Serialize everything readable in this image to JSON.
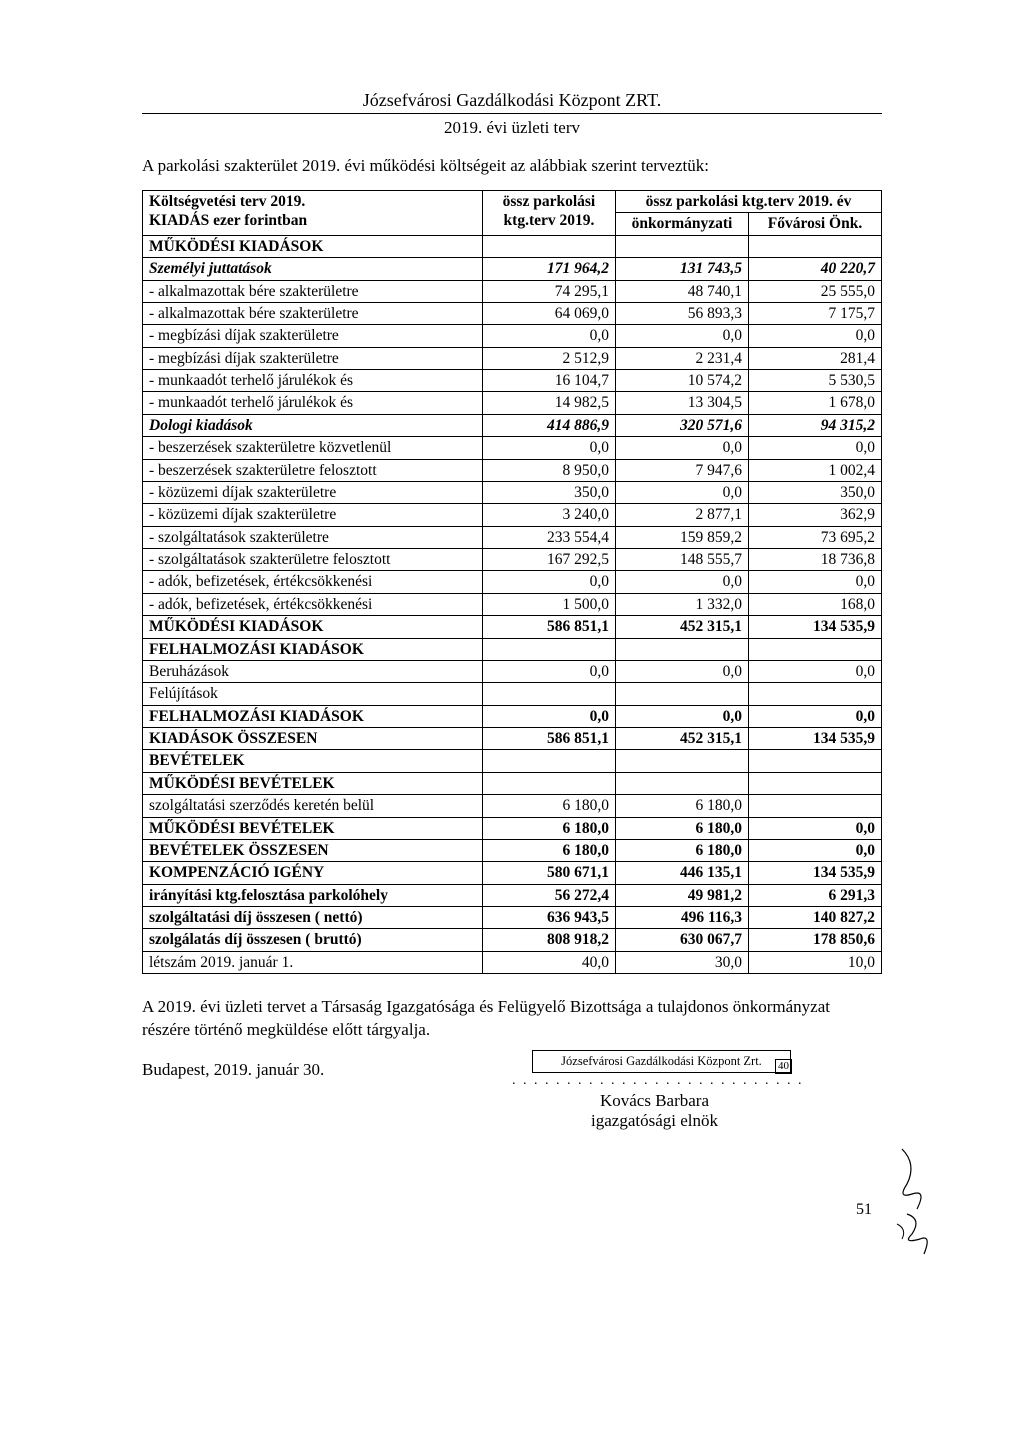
{
  "header": {
    "title": "Józsefvárosi Gazdálkodási Központ ZRT.",
    "subtitle": "2019. évi üzleti terv"
  },
  "intro": "A parkolási szakterület 2019. évi működési költségeit az alábbiak szerint terveztük:",
  "table": {
    "head": {
      "r1c1": "Költségvetési terv 2019.",
      "r1c2": "össz parkolási ktg.terv 2019.",
      "r1c3": "össz parkolási ktg.terv 2019. év",
      "r2c1": "KIADÁS ezer forintban",
      "r3c2": "önkormányzati",
      "r3c3": "Fővárosi Önk."
    },
    "rows": [
      {
        "label": "MŰKÖDÉSI KIADÁSOK",
        "c1": "",
        "c2": "",
        "c3": "",
        "style": "bold"
      },
      {
        "label": "Személyi juttatások",
        "c1": "171 964,2",
        "c2": "131 743,5",
        "c3": "40 220,7",
        "style": "ital"
      },
      {
        "label": "- alkalmazottak bére szakterületre",
        "c1": "74 295,1",
        "c2": "48 740,1",
        "c3": "25 555,0",
        "style": ""
      },
      {
        "label": "- alkalmazottak bére szakterületre",
        "c1": "64 069,0",
        "c2": "56 893,3",
        "c3": "7 175,7",
        "style": ""
      },
      {
        "label": "- megbízási díjak szakterületre",
        "c1": "0,0",
        "c2": "0,0",
        "c3": "0,0",
        "style": ""
      },
      {
        "label": "- megbízási díjak szakterületre",
        "c1": "2 512,9",
        "c2": "2 231,4",
        "c3": "281,4",
        "style": ""
      },
      {
        "label": "- munkaadót terhelő járulékok és",
        "c1": "16 104,7",
        "c2": "10 574,2",
        "c3": "5 530,5",
        "style": ""
      },
      {
        "label": "- munkaadót terhelő járulékok és",
        "c1": "14 982,5",
        "c2": "13 304,5",
        "c3": "1 678,0",
        "style": ""
      },
      {
        "label": "Dologi kiadások",
        "c1": "414 886,9",
        "c2": "320 571,6",
        "c3": "94 315,2",
        "style": "ital"
      },
      {
        "label": "- beszerzések szakterületre közvetlenül",
        "c1": "0,0",
        "c2": "0,0",
        "c3": "0,0",
        "style": ""
      },
      {
        "label": "- beszerzések szakterületre felosztott",
        "c1": "8 950,0",
        "c2": "7 947,6",
        "c3": "1 002,4",
        "style": ""
      },
      {
        "label": "- közüzemi díjak szakterületre",
        "c1": "350,0",
        "c2": "0,0",
        "c3": "350,0",
        "style": ""
      },
      {
        "label": "- közüzemi díjak szakterületre",
        "c1": "3 240,0",
        "c2": "2 877,1",
        "c3": "362,9",
        "style": ""
      },
      {
        "label": "- szolgáltatások szakterületre",
        "c1": "233 554,4",
        "c2": "159 859,2",
        "c3": "73 695,2",
        "style": ""
      },
      {
        "label": "- szolgáltatások szakterületre felosztott",
        "c1": "167 292,5",
        "c2": "148 555,7",
        "c3": "18 736,8",
        "style": ""
      },
      {
        "label": "- adók, befizetések, értékcsökkenési",
        "c1": "0,0",
        "c2": "0,0",
        "c3": "0,0",
        "style": ""
      },
      {
        "label": "- adók, befizetések, értékcsökkenési",
        "c1": "1 500,0",
        "c2": "1 332,0",
        "c3": "168,0",
        "style": ""
      },
      {
        "label": "MŰKÖDÉSI KIADÁSOK",
        "c1": "586 851,1",
        "c2": "452 315,1",
        "c3": "134 535,9",
        "style": "bold"
      },
      {
        "label": "FELHALMOZÁSI KIADÁSOK",
        "c1": "",
        "c2": "",
        "c3": "",
        "style": "bold"
      },
      {
        "label": "Beruházások",
        "c1": "0,0",
        "c2": "0,0",
        "c3": "0,0",
        "style": ""
      },
      {
        "label": "Felújítások",
        "c1": "",
        "c2": "",
        "c3": "",
        "style": ""
      },
      {
        "label": "FELHALMOZÁSI KIADÁSOK",
        "c1": "0,0",
        "c2": "0,0",
        "c3": "0,0",
        "style": "bold"
      },
      {
        "label": "KIADÁSOK  ÖSSZESEN",
        "c1": "586 851,1",
        "c2": "452 315,1",
        "c3": "134 535,9",
        "style": "bold"
      },
      {
        "label": "BEVÉTELEK",
        "c1": "",
        "c2": "",
        "c3": "",
        "style": "bold"
      },
      {
        "label": "MŰKÖDÉSI BEVÉTELEK",
        "c1": "",
        "c2": "",
        "c3": "",
        "style": "bold"
      },
      {
        "label": "szolgáltatási szerződés keretén belül",
        "c1": "6 180,0",
        "c2": "6 180,0",
        "c3": "",
        "style": ""
      },
      {
        "label": "MŰKÖDÉSI BEVÉTELEK",
        "c1": "6 180,0",
        "c2": "6 180,0",
        "c3": "0,0",
        "style": "bold"
      },
      {
        "label": "BEVÉTELEK ÖSSZESEN",
        "c1": "6 180,0",
        "c2": "6 180,0",
        "c3": "0,0",
        "style": "bold"
      },
      {
        "label": "KOMPENZÁCIÓ IGÉNY",
        "c1": "580 671,1",
        "c2": "446 135,1",
        "c3": "134 535,9",
        "style": "bold"
      },
      {
        "label": "irányítási ktg.felosztása parkolóhely",
        "c1": "56 272,4",
        "c2": "49 981,2",
        "c3": "6 291,3",
        "style": "bold"
      },
      {
        "label": "szolgáltatási díj  összesen ( nettó)",
        "c1": "636 943,5",
        "c2": "496 116,3",
        "c3": "140 827,2",
        "style": "bold"
      },
      {
        "label": "szolgálatás díj összesen ( bruttó)",
        "c1": "808 918,2",
        "c2": "630 067,7",
        "c3": "178 850,6",
        "style": "bold"
      },
      {
        "label": "létszám 2019. január 1.",
        "c1": "40,0",
        "c2": "30,0",
        "c3": "10,0",
        "style": ""
      }
    ]
  },
  "closing": "A 2019. évi üzleti tervet a Társaság Igazgatósága és Felügyelő Bizottsága a tulajdonos önkormányzat részére történő megküldése előtt tárgyalja.",
  "date": "Budapest, 2019. január 30.",
  "stamp": {
    "text": "Józsefvárosi Gazdálkodási Központ Zrt.",
    "num": "40"
  },
  "signature": {
    "name": "Kovács Barbara",
    "title": "igazgatósági elnök"
  },
  "page_number": "51"
}
